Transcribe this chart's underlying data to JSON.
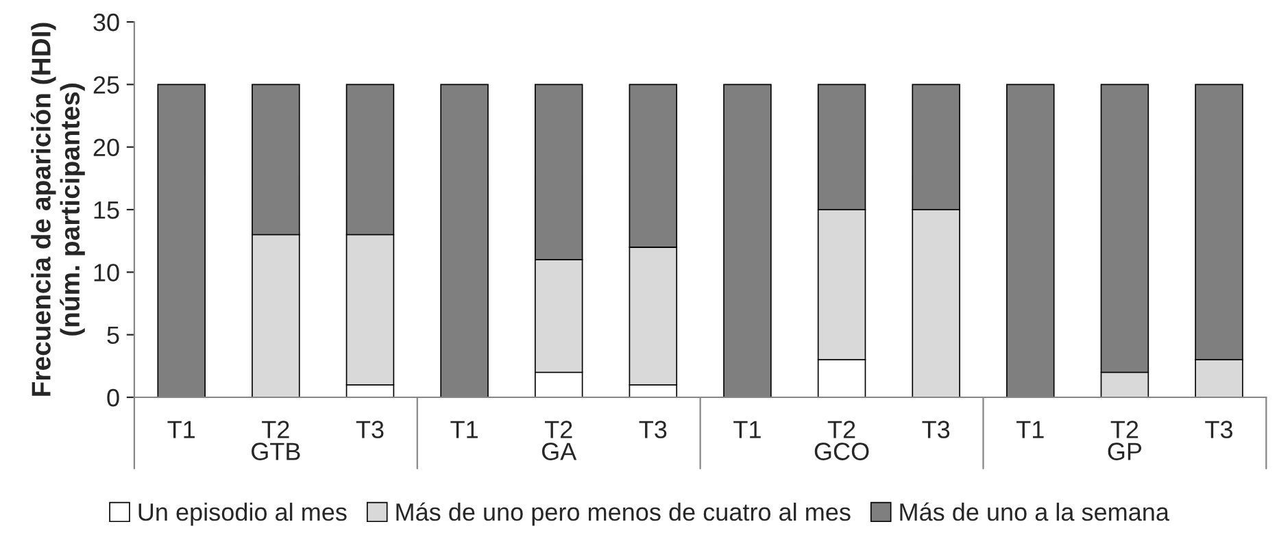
{
  "chart_data": {
    "type": "bar",
    "stacked": true,
    "ylabel": "Frecuencia de aparición (HDI)\n(núm. participantes)",
    "categories": [
      "T1",
      "T2",
      "T3",
      "T1",
      "T2",
      "T3",
      "T1",
      "T2",
      "T3",
      "T1",
      "T2",
      "T3"
    ],
    "annotations": [
      "GTB",
      "GA",
      "GCO",
      "GP"
    ],
    "series": [
      {
        "name": "Un episodio al mes",
        "color": "#ffffff",
        "values": [
          0,
          0,
          1,
          0,
          2,
          1,
          0,
          3,
          0,
          0,
          0,
          0
        ]
      },
      {
        "name": "Más de uno pero menos de cuatro al mes",
        "color": "#d9d9d9",
        "values": [
          0,
          13,
          12,
          0,
          9,
          11,
          0,
          12,
          15,
          0,
          2,
          3
        ]
      },
      {
        "name": "Más de uno a la semana",
        "color": "#7f7f7f",
        "values": [
          25,
          12,
          12,
          25,
          14,
          13,
          25,
          10,
          10,
          25,
          23,
          22
        ]
      }
    ],
    "ylim": [
      0,
      30
    ],
    "yticks": [
      0,
      5,
      10,
      15,
      20,
      25,
      30
    ],
    "grid": false,
    "legend": "bottom"
  }
}
